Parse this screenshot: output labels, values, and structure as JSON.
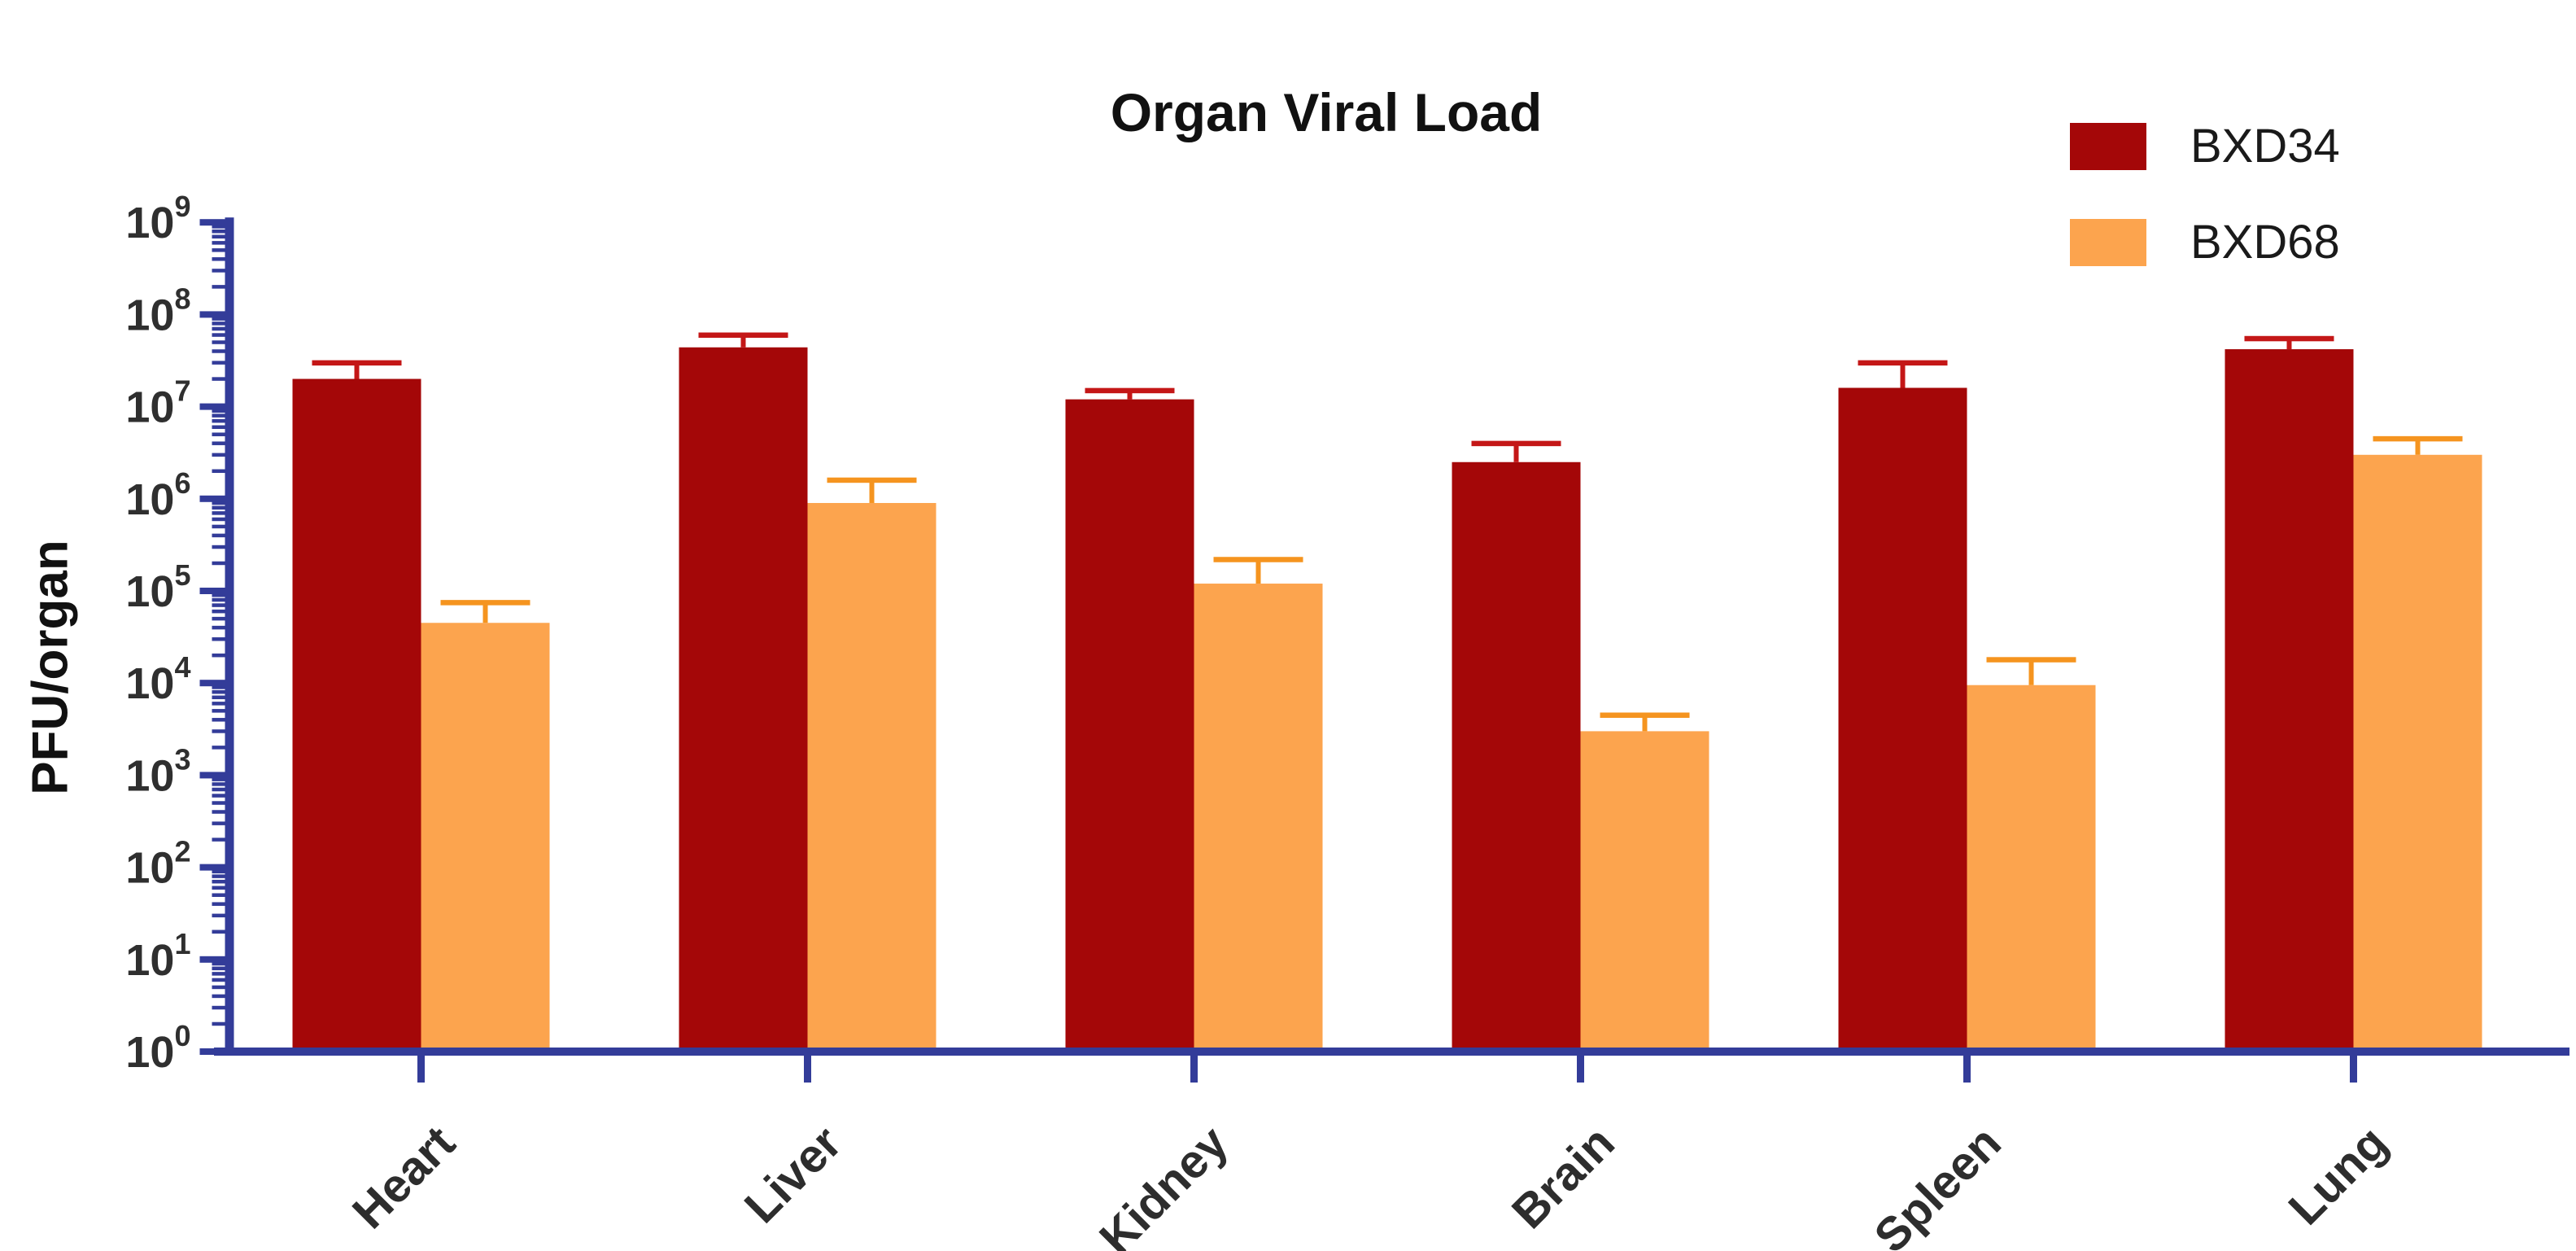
{
  "title": "Organ Viral Load",
  "y_axis": {
    "label": "PFU/organ",
    "exponent_min": 0,
    "exponent_max": 9
  },
  "legend": {
    "position": "top-right",
    "items": [
      {
        "label": "BXD34"
      },
      {
        "label": "BXD68"
      }
    ]
  },
  "chart_data": {
    "type": "bar",
    "title": "Organ Viral Load",
    "ylabel": "PFU/organ",
    "xlabel": "",
    "yscale": "log",
    "ylim": [
      1,
      1000000000.0
    ],
    "grid": false,
    "axis_color": "#333c99",
    "legend_position": "top-right",
    "categories": [
      "Heart",
      "Liver",
      "Kidney",
      "Brain",
      "Spleen",
      "Lung"
    ],
    "series": [
      {
        "name": "BXD34",
        "color": "#a40708",
        "error_color": "#c41717",
        "values": [
          20000000.0,
          44000000.0,
          12000000.0,
          2500000.0,
          16000000.0,
          42000000.0
        ],
        "error_high": [
          30000000.0,
          60000000.0,
          15000000.0,
          4000000.0,
          30000000.0,
          55000000.0
        ]
      },
      {
        "name": "BXD68",
        "color": "#fca44e",
        "error_color": "#f5941f",
        "values": [
          45000.0,
          900000.0,
          120000.0,
          3000.0,
          9500.0,
          3000000.0
        ],
        "error_high": [
          75000.0,
          1600000.0,
          220000.0,
          4500.0,
          18000.0,
          4500000.0
        ]
      }
    ]
  }
}
